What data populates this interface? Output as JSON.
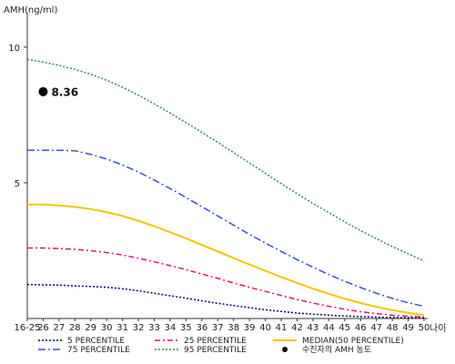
{
  "chart_data": {
    "type": "line",
    "ylabel": "AMH(ng/ml)",
    "xlabel": "나이",
    "ylim": [
      0,
      11
    ],
    "yticks": [
      5,
      10
    ],
    "categories": [
      "16-25",
      "26",
      "27",
      "28",
      "29",
      "30",
      "31",
      "32",
      "33",
      "34",
      "35",
      "36",
      "37",
      "38",
      "39",
      "40",
      "41",
      "42",
      "43",
      "44",
      "45",
      "46",
      "47",
      "48",
      "49",
      "50"
    ],
    "series": [
      {
        "name": "5 PERCENTILE",
        "color": "#0a0a6e",
        "dash": "2,2",
        "values": [
          1.25,
          1.24,
          1.23,
          1.2,
          1.18,
          1.15,
          1.1,
          1.02,
          0.93,
          0.84,
          0.75,
          0.65,
          0.56,
          0.48,
          0.4,
          0.32,
          0.26,
          0.2,
          0.16,
          0.12,
          0.09,
          0.07,
          0.05,
          0.04,
          0.03,
          0.03
        ]
      },
      {
        "name": "25 PERCENTILE",
        "color": "#e0117f",
        "dash": "6,3,2,3",
        "values": [
          2.6,
          2.6,
          2.58,
          2.55,
          2.5,
          2.43,
          2.34,
          2.22,
          2.09,
          1.95,
          1.8,
          1.64,
          1.48,
          1.31,
          1.15,
          1.0,
          0.85,
          0.7,
          0.57,
          0.45,
          0.34,
          0.25,
          0.18,
          0.12,
          0.08,
          0.06
        ]
      },
      {
        "name": "MEDIAN(50 PERCENTILE)",
        "color": "#f2c600",
        "dash": "",
        "values": [
          4.2,
          4.2,
          4.17,
          4.11,
          4.03,
          3.92,
          3.78,
          3.6,
          3.4,
          3.18,
          2.95,
          2.71,
          2.47,
          2.23,
          1.99,
          1.76,
          1.53,
          1.31,
          1.1,
          0.91,
          0.73,
          0.57,
          0.43,
          0.31,
          0.21,
          0.13
        ]
      },
      {
        "name": "75 PERCENTILE",
        "color": "#3355cc",
        "dash": "8,3,2,3",
        "values": [
          6.2,
          6.2,
          6.2,
          6.18,
          6.05,
          5.88,
          5.66,
          5.4,
          5.1,
          4.79,
          4.46,
          4.12,
          3.78,
          3.44,
          3.1,
          2.78,
          2.47,
          2.17,
          1.89,
          1.62,
          1.37,
          1.14,
          0.93,
          0.74,
          0.58,
          0.45
        ]
      },
      {
        "name": "95 PERCENTILE",
        "color": "#2e8b57",
        "dash": "2,2",
        "values": [
          9.55,
          9.45,
          9.33,
          9.18,
          9.0,
          8.78,
          8.52,
          8.23,
          7.91,
          7.57,
          7.22,
          6.86,
          6.49,
          6.11,
          5.73,
          5.35,
          4.97,
          4.6,
          4.24,
          3.9,
          3.56,
          3.24,
          2.94,
          2.65,
          2.38,
          2.12
        ]
      }
    ],
    "annotations": [
      {
        "label": "8.36",
        "x": "26",
        "y": 8.36
      }
    ],
    "legend": {
      "placement": "bottom",
      "items": [
        {
          "label": "5 PERCENTILE",
          "color": "#0a0a6e",
          "dash": "2,2"
        },
        {
          "label": "25 PERCENTILE",
          "color": "#e0117f",
          "dash": "6,3,2,3"
        },
        {
          "label": "MEDIAN(50 PERCENTILE)",
          "color": "#f2c600",
          "dash": ""
        },
        {
          "label": "75 PERCENTILE",
          "color": "#3355cc",
          "dash": "8,3,2,3"
        },
        {
          "label": "95 PERCENTILE",
          "color": "#2e8b57",
          "dash": "2,2"
        },
        {
          "label": "수진자의 AMH 농도",
          "color": "#000000",
          "marker": "dot"
        }
      ]
    }
  }
}
